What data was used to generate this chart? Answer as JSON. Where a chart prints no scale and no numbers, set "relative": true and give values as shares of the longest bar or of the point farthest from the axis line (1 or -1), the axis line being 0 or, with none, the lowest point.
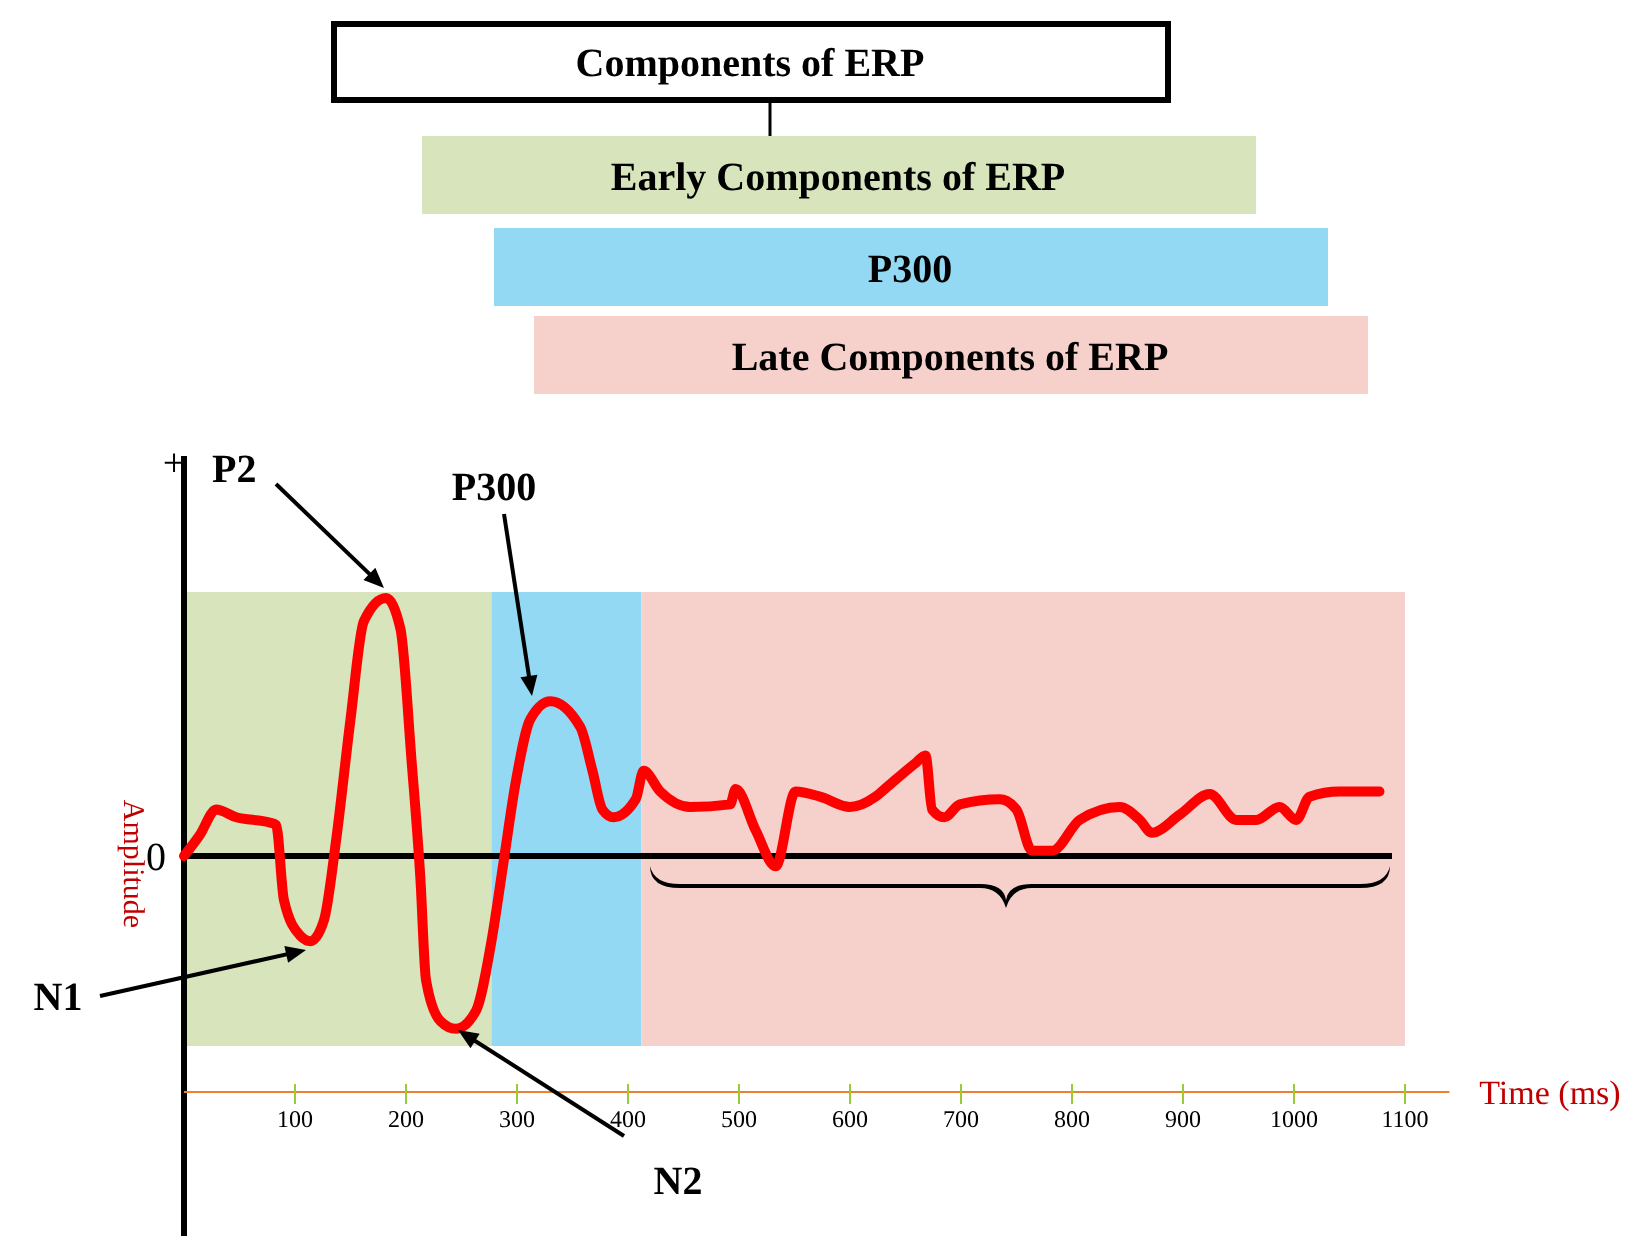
{
  "chart_data": {
    "type": "line",
    "title": "Components of ERP",
    "xlabel": "Time (ms)",
    "ylabel": "Amplitude",
    "relative": true,
    "x": [
      0,
      14,
      29,
      47,
      77,
      83,
      90,
      105,
      114,
      126,
      137,
      150,
      162,
      182,
      195,
      205,
      213,
      218,
      231,
      245,
      263,
      277,
      288,
      299,
      312,
      330,
      357,
      368,
      377,
      387,
      407,
      414,
      429,
      456,
      492,
      497,
      515,
      533,
      551,
      573,
      600,
      623,
      634,
      659,
      668,
      674,
      685,
      699,
      735,
      750,
      764,
      782,
      807,
      843,
      861,
      872,
      897,
      924,
      948,
      966,
      987,
      1002,
      1014,
      1041,
      1077
    ],
    "series": [
      {
        "color": "#ff0000",
        "values": [
          0,
          0.08,
          0.18,
          0.15,
          0.13,
          0.12,
          -0.17,
          -0.31,
          -0.33,
          -0.25,
          0.06,
          0.53,
          0.91,
          1,
          0.88,
          0.37,
          -0.09,
          -0.48,
          -0.64,
          -0.67,
          -0.6,
          -0.33,
          -0.02,
          0.29,
          0.53,
          0.6,
          0.5,
          0.33,
          0.18,
          0.15,
          0.22,
          0.33,
          0.25,
          0.19,
          0.2,
          0.26,
          0.1,
          -0.04,
          0.25,
          0.23,
          0.19,
          0.23,
          0.27,
          0.36,
          0.39,
          0.18,
          0.15,
          0.2,
          0.22,
          0.18,
          0.02,
          0.02,
          0.14,
          0.19,
          0.14,
          0.09,
          0.16,
          0.24,
          0.14,
          0.14,
          0.19,
          0.14,
          0.23,
          0.25,
          0.25
        ]
      }
    ],
    "xlim": [
      0,
      1140
    ],
    "xticks": [
      100,
      200,
      300,
      400,
      500,
      600,
      700,
      800,
      900,
      1000,
      1100
    ],
    "bands": [
      {
        "axis": "x",
        "from": 0,
        "to": 277,
        "color": "#d7e4bc"
      },
      {
        "axis": "x",
        "from": 277,
        "to": 412,
        "color": "#93d9f4"
      },
      {
        "axis": "x",
        "from": 412,
        "to": 1100,
        "color": "#f6d0cb"
      }
    ],
    "annotations": [
      "Early Components of ERP",
      "P300",
      "Late Components of ERP",
      "P2",
      "P300",
      "N1",
      "N2",
      "+",
      "0"
    ]
  }
}
